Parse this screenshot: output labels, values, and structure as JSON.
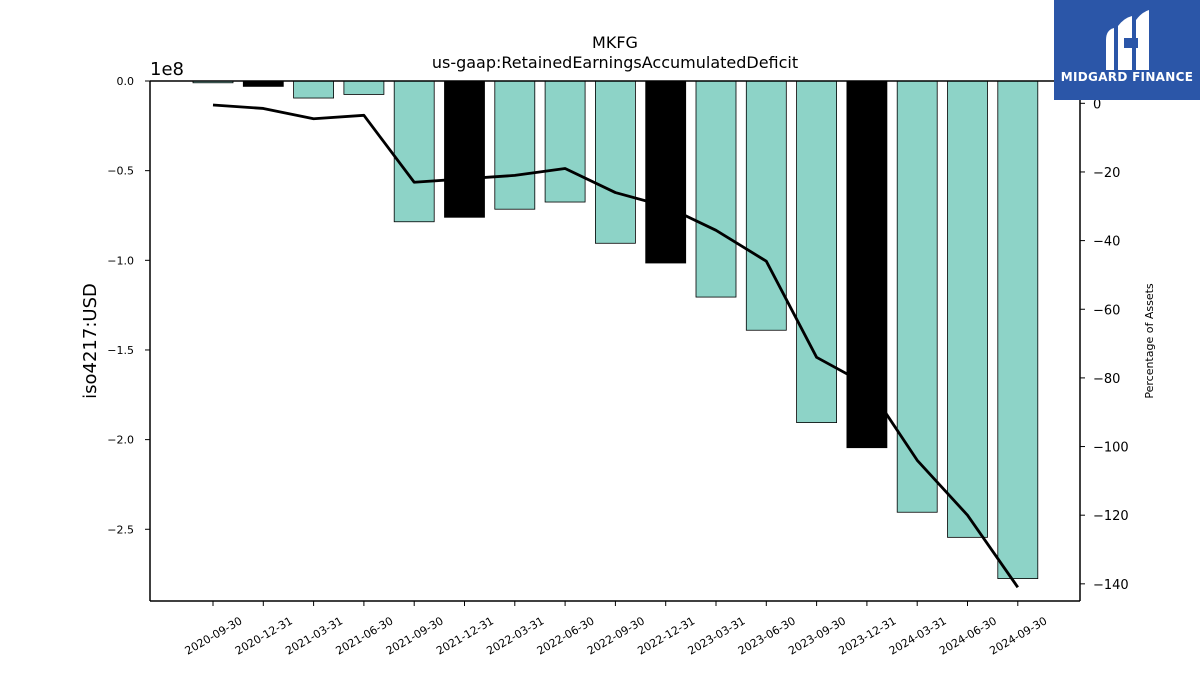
{
  "branding": {
    "name": "MIDGARD FINANCE",
    "bg_color": "#2b56a8"
  },
  "chart_data": {
    "type": "bar",
    "title": "MKFG",
    "subtitle": "us-gaap:RetainedEarningsAccumulatedDeficit",
    "ylabel": "iso4217:USD",
    "ylabel_right": "Percentage of Assets",
    "y_scale_note": "1e8",
    "categories": [
      "2020-09-30",
      "2020-12-31",
      "2021-03-31",
      "2021-06-30",
      "2021-09-30",
      "2021-12-31",
      "2022-03-31",
      "2022-06-30",
      "2022-09-30",
      "2022-12-31",
      "2023-03-31",
      "2023-06-30",
      "2023-09-30",
      "2023-12-31",
      "2024-03-31",
      "2024-06-30",
      "2024-09-30"
    ],
    "series": [
      {
        "type": "bar",
        "values": [
          -0.01,
          -0.03,
          -0.095,
          -0.075,
          -0.785,
          -0.76,
          -0.715,
          -0.675,
          -0.905,
          -1.015,
          -1.205,
          -1.39,
          -1.905,
          -2.045,
          -2.405,
          -2.545,
          -2.775
        ],
        "colors": [
          "#8dd3c7",
          "#000000",
          "#8dd3c7",
          "#8dd3c7",
          "#8dd3c7",
          "#000000",
          "#8dd3c7",
          "#8dd3c7",
          "#8dd3c7",
          "#000000",
          "#8dd3c7",
          "#8dd3c7",
          "#8dd3c7",
          "#000000",
          "#8dd3c7",
          "#8dd3c7",
          "#8dd3c7"
        ]
      },
      {
        "type": "line",
        "axis": "right",
        "color": "#000000",
        "values": [
          -0.5,
          -1.5,
          -4.5,
          -3.5,
          -23,
          -22,
          -21,
          -19,
          -26,
          -30,
          -37,
          -46,
          -74,
          -82,
          -104,
          -120,
          -141
        ]
      }
    ],
    "left_axis": {
      "ylim": [
        -2.9,
        0.0
      ],
      "ticks": [
        0.0,
        -0.5,
        -1.0,
        -1.5,
        -2.0,
        -2.5
      ],
      "tick_labels": [
        "0.0",
        "−0.5",
        "−1.0",
        "−1.5",
        "−2.0",
        "−2.5"
      ]
    },
    "right_axis": {
      "ylim": [
        -145,
        6.5
      ],
      "ticks": [
        0,
        -20,
        -40,
        -60,
        -80,
        -100,
        -120,
        -140
      ],
      "tick_labels": [
        "0",
        "−20",
        "−40",
        "−60",
        "−80",
        "−100",
        "−120",
        "−140"
      ]
    },
    "grid": false,
    "legend": "none"
  }
}
